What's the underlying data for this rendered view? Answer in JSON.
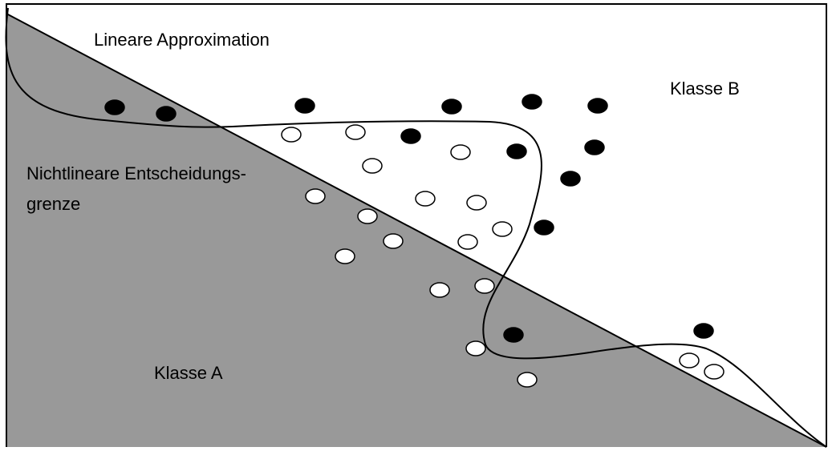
{
  "labels": {
    "linear": "Lineare Approximation",
    "nonlinear_line1": "Nichtlineare Entscheidungs-",
    "nonlinear_line2": "grenze",
    "class_b": "Klasse B",
    "class_a": "Klasse A"
  },
  "colors": {
    "class_a_region": "#999999",
    "class_b_region": "#ffffff",
    "filled_point": "#000000",
    "hollow_point": "#ffffff",
    "line": "#000000"
  },
  "legend": {
    "filled_points": "Klasse B",
    "hollow_points": "Klasse A"
  }
}
